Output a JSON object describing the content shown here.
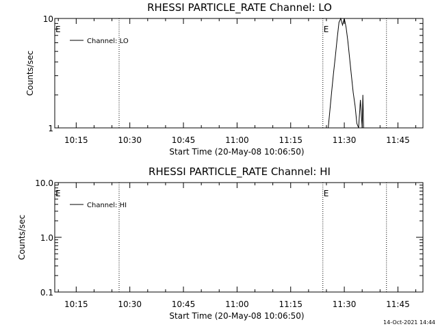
{
  "footer": {
    "timestamp": "14-Oct-2021 14:44"
  },
  "chart_data": [
    {
      "type": "line",
      "title": "RHESSI PARTICLE_RATE Channel: LO",
      "xlabel": "Start Time (20-May-08 10:06:50)",
      "ylabel": "Counts/sec",
      "y_scale": "log",
      "x_tick_labels": [
        "10:15",
        "10:30",
        "10:45",
        "11:00",
        "11:15",
        "11:30",
        "11:45"
      ],
      "x_ticks_min": [
        15,
        30,
        45,
        60,
        75,
        90,
        105
      ],
      "x_range_min": [
        9,
        112
      ],
      "ylim": [
        1,
        10
      ],
      "y_tick_labels": [
        "1",
        "10"
      ],
      "y_ticks": [
        1,
        10
      ],
      "legend": {
        "label": "Channel: LO",
        "position": "top-left"
      },
      "event_markers": [
        {
          "label": "E",
          "time_min": 9.0
        },
        {
          "label": "E",
          "time_min": 84.0
        }
      ],
      "dotted_lines_min": [
        27.0,
        84.0,
        101.8
      ],
      "series": [
        {
          "name": "Channel: LO",
          "x": [
            84,
            85.5,
            86.5,
            87,
            87.5,
            88,
            88.5,
            89,
            89.5,
            90,
            90.5,
            91,
            91.5,
            92,
            92.5,
            93,
            93.5,
            94,
            94.5,
            95,
            95.5
          ],
          "y": [
            1,
            1,
            2.2,
            3.2,
            4.5,
            6.5,
            9.2,
            10,
            8.7,
            10,
            8.3,
            6.2,
            4.3,
            3.0,
            2.1,
            1.6,
            1.1,
            1,
            1.8,
            1,
            1
          ]
        },
        {
          "name": "",
          "x": [
            95,
            95.2,
            95.4
          ],
          "y": [
            1,
            2.0,
            1
          ]
        }
      ]
    },
    {
      "type": "line",
      "title": "RHESSI PARTICLE_RATE Channel: HI",
      "xlabel": "Start Time (20-May-08 10:06:50)",
      "ylabel": "Counts/sec",
      "y_scale": "log",
      "x_tick_labels": [
        "10:15",
        "10:30",
        "10:45",
        "11:00",
        "11:15",
        "11:30",
        "11:45"
      ],
      "x_ticks_min": [
        15,
        30,
        45,
        60,
        75,
        90,
        105
      ],
      "x_range_min": [
        9,
        112
      ],
      "ylim": [
        0.1,
        10
      ],
      "y_tick_labels": [
        "0.1",
        "1.0",
        "10.0"
      ],
      "y_ticks": [
        0.1,
        1,
        10
      ],
      "legend": {
        "label": "Channel: HI",
        "position": "top-left"
      },
      "event_markers": [
        {
          "label": "E",
          "time_min": 9.0
        },
        {
          "label": "E",
          "time_min": 84.0
        }
      ],
      "dotted_lines_min": [
        27.0,
        84.0,
        101.8
      ],
      "series": [
        {
          "name": "Channel: HI",
          "x": [],
          "y": []
        }
      ]
    }
  ]
}
